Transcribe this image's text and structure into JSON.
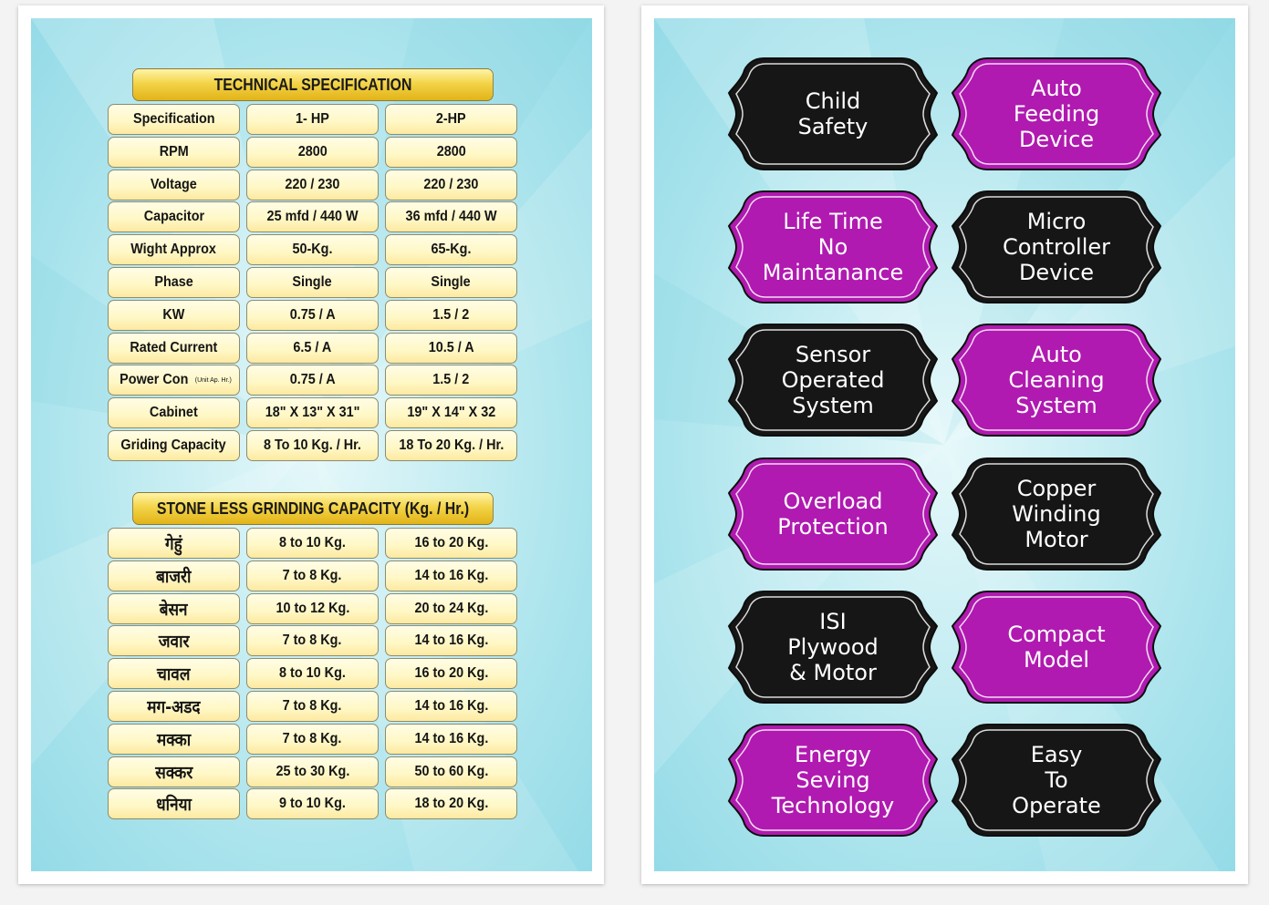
{
  "technical_specification": {
    "title": "TECHNICAL SPECIFICATION",
    "rows": [
      {
        "label": "Specification",
        "hp1": "1- HP",
        "hp2": "2-HP"
      },
      {
        "label": "RPM",
        "hp1": "2800",
        "hp2": "2800"
      },
      {
        "label": "Voltage",
        "hp1": "220 / 230",
        "hp2": "220 / 230"
      },
      {
        "label": "Capacitor",
        "hp1": "25 mfd / 440 W",
        "hp2": "36 mfd / 440 W"
      },
      {
        "label": "Wight Approx",
        "hp1": "50-Kg.",
        "hp2": "65-Kg."
      },
      {
        "label": "Phase",
        "hp1": "Single",
        "hp2": "Single"
      },
      {
        "label": "KW",
        "hp1": "0.75 / A",
        "hp2": "1.5 / 2"
      },
      {
        "label": "Rated Current",
        "hp1": "6.5 / A",
        "hp2": "10.5 / A"
      },
      {
        "label": "Power Con",
        "note": "(Unit Ap. Hr.)",
        "hp1": "0.75 / A",
        "hp2": "1.5 / 2"
      },
      {
        "label": "Cabinet",
        "hp1": "18\" X 13\" X 31\"",
        "hp2": "19\" X 14\" X 32"
      },
      {
        "label": "Griding Capacity",
        "hp1": "8 To 10 Kg. / Hr.",
        "hp2": "18 To 20 Kg. / Hr."
      }
    ]
  },
  "grinding_capacity": {
    "title": "STONE LESS GRINDING CAPACITY (Kg. / Hr.)",
    "rows": [
      {
        "grain": "गेहुं",
        "hp1": "8 to 10 Kg.",
        "hp2": "16 to 20 Kg."
      },
      {
        "grain": "बाजरी",
        "hp1": "7 to 8 Kg.",
        "hp2": "14 to 16 Kg."
      },
      {
        "grain": "बेसन",
        "hp1": "10 to 12 Kg.",
        "hp2": "20 to 24 Kg."
      },
      {
        "grain": "जवार",
        "hp1": "7 to 8 Kg.",
        "hp2": "14 to 16 Kg."
      },
      {
        "grain": "चावल",
        "hp1": "8 to 10 Kg.",
        "hp2": "16 to 20 Kg."
      },
      {
        "grain": "मग-अडद",
        "hp1": "7 to 8 Kg.",
        "hp2": "14 to 16 Kg."
      },
      {
        "grain": "मक्का",
        "hp1": "7 to 8 Kg.",
        "hp2": "14 to 16 Kg."
      },
      {
        "grain": "सक्कर",
        "hp1": "25 to 30 Kg.",
        "hp2": "50 to 60 Kg."
      },
      {
        "grain": "धनिया",
        "hp1": "9 to 10 Kg.",
        "hp2": "18 to 20 Kg."
      }
    ]
  },
  "features": [
    {
      "text": "Child\nSafety",
      "color": "#161616"
    },
    {
      "text": "Auto\nFeeding\nDevice",
      "color": "#b01ab0"
    },
    {
      "text": "Life Time\nNo\nMaintanance",
      "color": "#b01ab0"
    },
    {
      "text": "Micro\nController\nDevice",
      "color": "#161616"
    },
    {
      "text": "Sensor\nOperated\nSystem",
      "color": "#161616"
    },
    {
      "text": "Auto\nCleaning\nSystem",
      "color": "#b01ab0"
    },
    {
      "text": "Overload\nProtection",
      "color": "#b01ab0"
    },
    {
      "text": "Copper\nWinding\nMotor",
      "color": "#161616"
    },
    {
      "text": "ISI\nPlywood\n& Motor",
      "color": "#161616"
    },
    {
      "text": "Compact\nModel",
      "color": "#b01ab0"
    },
    {
      "text": "Energy\nSeving\nTechnology",
      "color": "#b01ab0"
    },
    {
      "text": "Easy\nTo\nOperate",
      "color": "#161616"
    }
  ],
  "colors": {
    "panel_bg": "#a9e3ec",
    "header_gold": "#f3d448",
    "cell_cream": "#fff7c4",
    "badge_black": "#161616",
    "badge_magenta": "#b01ab0"
  }
}
